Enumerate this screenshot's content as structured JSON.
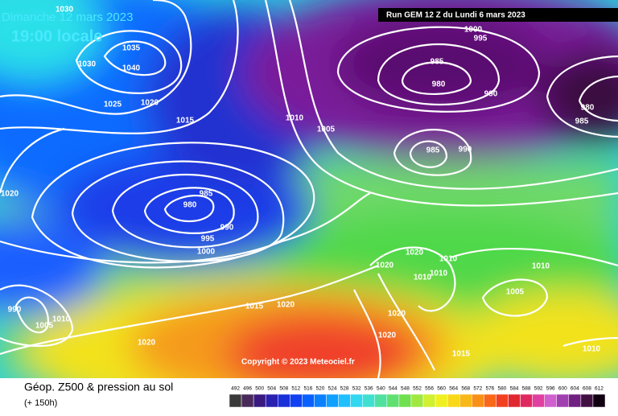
{
  "header": {
    "date": "Dimanche 12 mars 2023",
    "time": "19:00 locale",
    "run": "Run GEM 12 Z du Lundi 6 mars 2023"
  },
  "isobars": [
    1030,
    1035,
    1040,
    1030,
    1025,
    1020,
    1015,
    1010,
    1005,
    1000,
    995,
    985,
    980,
    990,
    985,
    990,
    980,
    985,
    1020,
    985,
    980,
    990,
    995,
    1000,
    1020,
    1020,
    1010,
    1010,
    1010,
    1010,
    1005,
    1015,
    1020,
    1020,
    1020,
    1015,
    1010,
    1020,
    1010,
    990,
    1005
  ],
  "copyright": "Copyright © 2023 Meteociel.fr",
  "footer": {
    "title": "Géop. Z500 & pression au sol",
    "lead": "(+ 150h)",
    "scale": [
      492,
      496,
      500,
      504,
      508,
      512,
      516,
      520,
      524,
      528,
      532,
      536,
      540,
      544,
      548,
      552,
      556,
      560,
      564,
      568,
      572,
      576,
      580,
      584,
      588,
      592,
      596,
      600,
      604,
      608,
      612
    ]
  }
}
